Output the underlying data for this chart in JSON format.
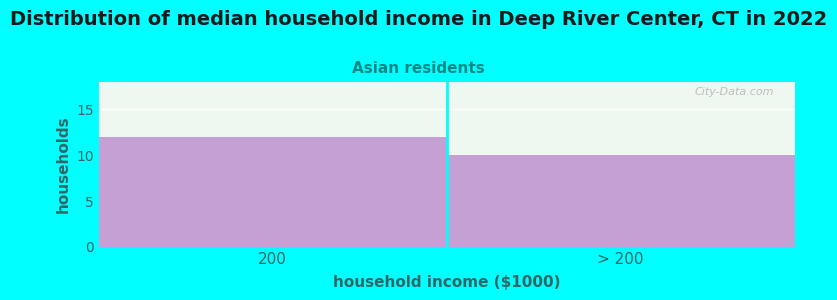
{
  "title": "Distribution of median household income in Deep River Center, CT in 2022",
  "subtitle": "Asian residents",
  "categories": [
    "200",
    "> 200"
  ],
  "values": [
    12,
    10
  ],
  "bar_color": "#c4a0d4",
  "background_color": "#00ffff",
  "plot_bg_color": "#eef8f0",
  "xlabel": "household income ($1000)",
  "ylabel": "households",
  "ylim": [
    0,
    18
  ],
  "yticks": [
    0,
    5,
    10,
    15
  ],
  "title_fontsize": 14,
  "subtitle_fontsize": 11,
  "title_color": "#1a1a1a",
  "subtitle_color": "#008888",
  "axis_label_fontsize": 11,
  "tick_color": "#336666",
  "watermark": "City-Data.com"
}
